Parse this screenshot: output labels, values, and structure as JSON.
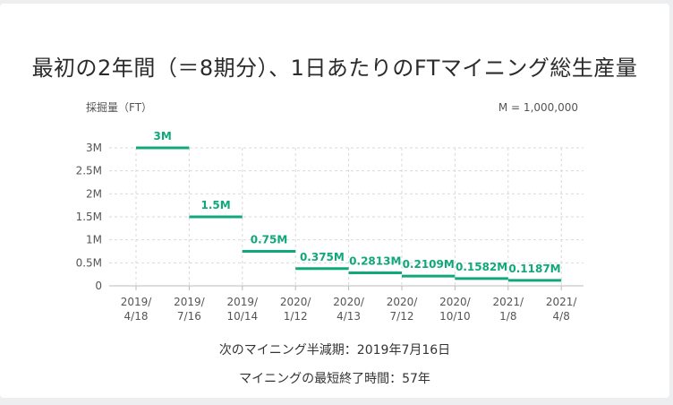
{
  "title": "最初の2年間（＝8期分）、1日あたりのFTマイニング総生産量",
  "next_halving": "次のマイニング半減期：2019年7月16日",
  "min_mining_time": "マイニングの最短終了時間：57年",
  "colors": {
    "accent": "#10a87a",
    "grid": "#d9d9d9",
    "text": "#555555"
  },
  "chart_data": {
    "type": "step",
    "ylabel": "採掘量（FT）",
    "unit_note": "M = 1,000,000",
    "ylim": [
      0,
      3000000
    ],
    "y_ticks": [
      {
        "value": 0,
        "label": "0"
      },
      {
        "value": 500000,
        "label": "0.5M"
      },
      {
        "value": 1000000,
        "label": "1M"
      },
      {
        "value": 1500000,
        "label": "1.5M"
      },
      {
        "value": 2000000,
        "label": "2M"
      },
      {
        "value": 2500000,
        "label": "2.5M"
      },
      {
        "value": 3000000,
        "label": "3M"
      }
    ],
    "x_ticks": [
      {
        "line1": "2019/",
        "line2": "4/18"
      },
      {
        "line1": "2019/",
        "line2": "7/16"
      },
      {
        "line1": "2019/",
        "line2": "10/14"
      },
      {
        "line1": "2020/",
        "line2": "1/12"
      },
      {
        "line1": "2020/",
        "line2": "4/13"
      },
      {
        "line1": "2020/",
        "line2": "7/12"
      },
      {
        "line1": "2020/",
        "line2": "10/10"
      },
      {
        "line1": "2021/",
        "line2": "1/8"
      },
      {
        "line1": "2021/",
        "line2": "4/8"
      }
    ],
    "periods": [
      {
        "value": 3000000,
        "label": "3M"
      },
      {
        "value": 1500000,
        "label": "1.5M"
      },
      {
        "value": 750000,
        "label": "0.75M"
      },
      {
        "value": 375000,
        "label": "0.375M"
      },
      {
        "value": 281300,
        "label": "0.2813M"
      },
      {
        "value": 210900,
        "label": "0.2109M"
      },
      {
        "value": 158200,
        "label": "0.1582M"
      },
      {
        "value": 118700,
        "label": "0.1187M"
      }
    ]
  }
}
